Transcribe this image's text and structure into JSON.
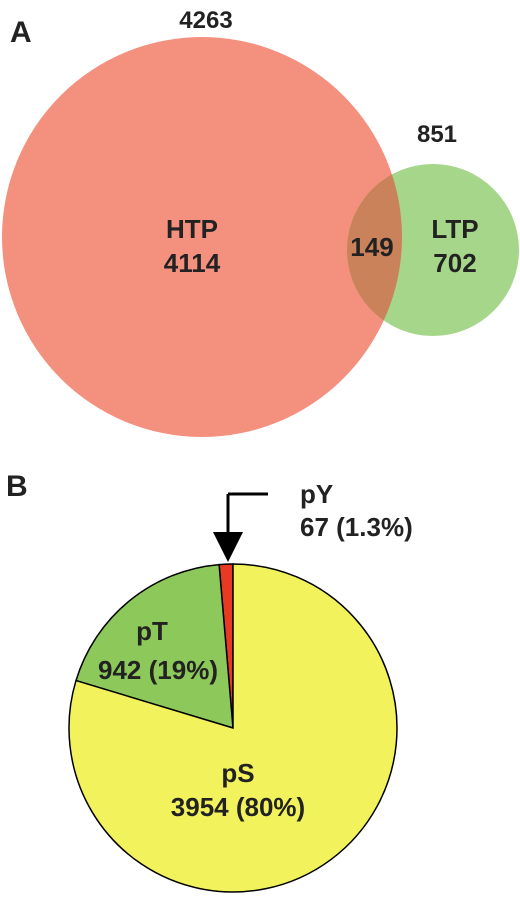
{
  "chart_data": [
    {
      "type": "venn",
      "panel_label": "A",
      "sets": [
        {
          "label": "HTP",
          "total": 4263,
          "unique": 4114,
          "color": "#f4907e"
        },
        {
          "label": "LTP",
          "total": 851,
          "unique": 702,
          "color": "#a6d68a"
        }
      ],
      "overlap": {
        "value": 149,
        "color": "#c9825a"
      }
    },
    {
      "type": "pie",
      "panel_label": "B",
      "slices": [
        {
          "label": "pY",
          "value": 67,
          "percent_text": "67 (1.3%)",
          "color": "#e83a23"
        },
        {
          "label": "pT",
          "value": 942,
          "percent_text": "942 (19%)",
          "color": "#8cc85a"
        },
        {
          "label": "pS",
          "value": 3954,
          "percent_text": "3954 (80%)",
          "color": "#f2f25c"
        }
      ]
    }
  ]
}
